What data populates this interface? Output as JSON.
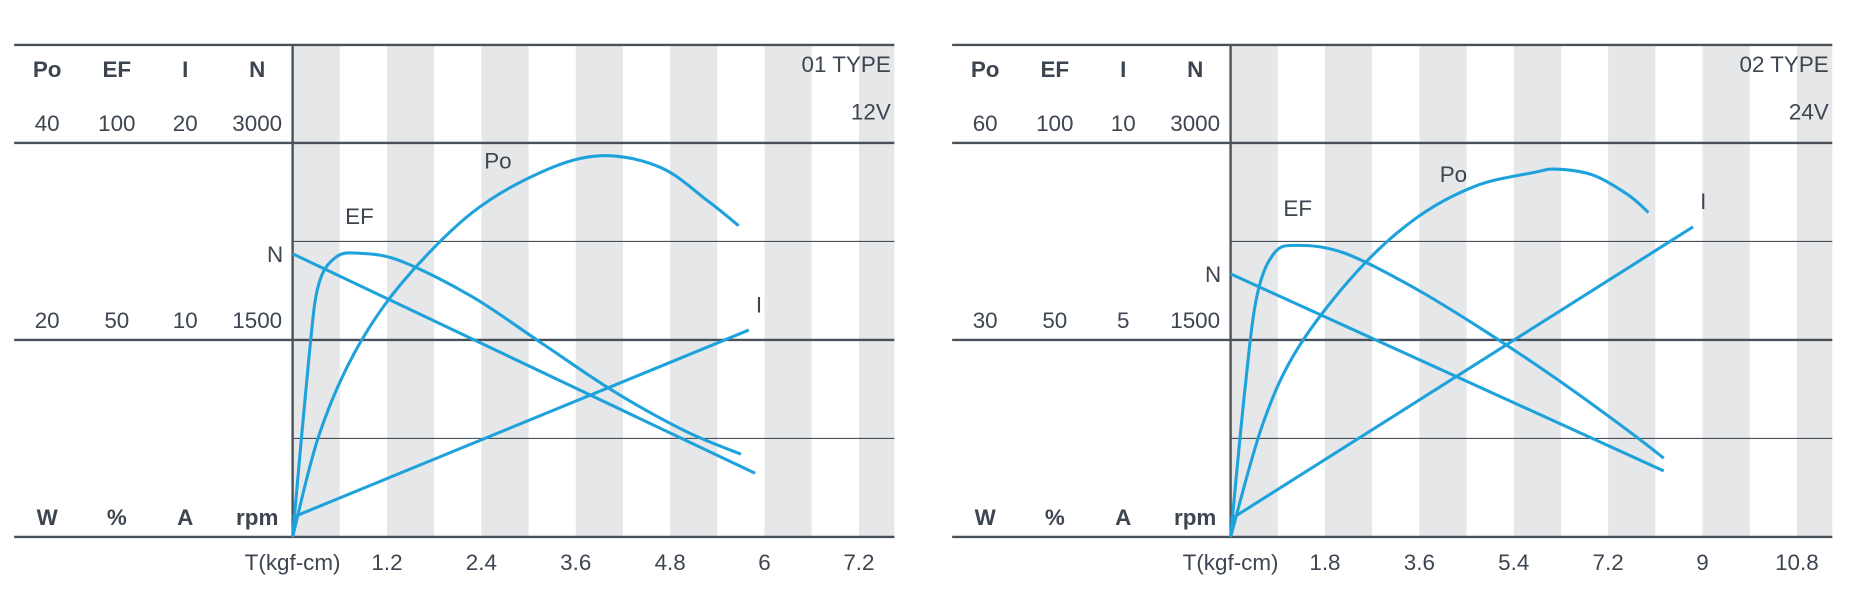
{
  "chart_data": [
    {
      "type": "line",
      "title": "01 TYPE",
      "subtitle": "12V",
      "x_label": "T(kgf-cm)",
      "xlim": [
        0,
        7.65
      ],
      "xticks": [
        1.2,
        2.4,
        3.6,
        4.8,
        6,
        7.2
      ],
      "grid": true,
      "axes": [
        {
          "label": "Po",
          "unit": "W",
          "ylim": [
            0,
            40
          ],
          "yticks": [
            20,
            40
          ]
        },
        {
          "label": "EF",
          "unit": "%",
          "ylim": [
            0,
            100
          ],
          "yticks": [
            50,
            100
          ]
        },
        {
          "label": "I",
          "unit": "A",
          "ylim": [
            0,
            20
          ],
          "yticks": [
            10,
            20
          ]
        },
        {
          "label": "N",
          "unit": "rpm",
          "ylim": [
            0,
            3000
          ],
          "yticks": [
            1500,
            3000
          ]
        }
      ],
      "series": [
        {
          "name": "N",
          "color": "#1ea2dc",
          "axis": "N",
          "x": [
            0,
            5.88
          ],
          "values": [
            2156,
            485
          ]
        },
        {
          "name": "EF",
          "color": "#1ea2dc",
          "axis": "EF",
          "x": [
            0,
            0.21,
            0.33,
            0.55,
            0.85,
            1.38,
            2.28,
            3.18,
            4.08,
            4.98,
            5.7
          ],
          "values": [
            0,
            46,
            64,
            71,
            72,
            70,
            61,
            49,
            37,
            27,
            21
          ]
        },
        {
          "name": "Po",
          "color": "#1ea2dc",
          "axis": "Po",
          "x": [
            0,
            0.33,
            0.78,
            1.38,
            2.28,
            3.18,
            3.93,
            4.68,
            5.28,
            5.67
          ],
          "values": [
            0,
            10.2,
            18.6,
            25.7,
            32.9,
            37.1,
            38.7,
            37.5,
            34.1,
            31.6
          ]
        },
        {
          "name": "I",
          "color": "#1ea2dc",
          "axis": "I",
          "x": [
            0,
            5.8
          ],
          "values": [
            1.0,
            10.5
          ]
        }
      ]
    },
    {
      "type": "line",
      "title": "02 TYPE",
      "subtitle": "24V",
      "x_label": "T(kgf-cm)",
      "xlim": [
        0,
        11.475
      ],
      "xticks": [
        1.8,
        3.6,
        5.4,
        7.2,
        9,
        10.8
      ],
      "grid": true,
      "axes": [
        {
          "label": "Po",
          "unit": "W",
          "ylim": [
            0,
            60
          ],
          "yticks": [
            30,
            60
          ]
        },
        {
          "label": "EF",
          "unit": "%",
          "ylim": [
            0,
            100
          ],
          "yticks": [
            50,
            100
          ]
        },
        {
          "label": "I",
          "unit": "A",
          "ylim": [
            0,
            10
          ],
          "yticks": [
            5,
            10
          ]
        },
        {
          "label": "N",
          "unit": "rpm",
          "ylim": [
            0,
            3000
          ],
          "yticks": [
            1500,
            3000
          ]
        }
      ],
      "series": [
        {
          "name": "N",
          "color": "#1ea2dc",
          "axis": "N",
          "x": [
            0,
            8.26
          ],
          "values": [
            2003,
            503
          ]
        },
        {
          "name": "EF",
          "color": "#1ea2dc",
          "axis": "EF",
          "x": [
            0,
            0.27,
            0.5,
            0.83,
            1.28,
            2.18,
            3.53,
            4.88,
            6.23,
            7.58,
            8.26
          ],
          "values": [
            0,
            37,
            61,
            72,
            74,
            72,
            63,
            52,
            40,
            27,
            20
          ]
        },
        {
          "name": "Po",
          "color": "#1ea2dc",
          "axis": "Po",
          "x": [
            0,
            0.61,
            1.28,
            2.41,
            3.53,
            4.66,
            5.78,
            6.23,
            6.91,
            7.58,
            7.97
          ],
          "values": [
            0,
            17.1,
            28.7,
            40.4,
            48.5,
            53.4,
            55.5,
            56.0,
            55.1,
            52.1,
            49.4
          ]
        },
        {
          "name": "I",
          "color": "#1ea2dc",
          "axis": "I",
          "x": [
            0,
            8.82
          ],
          "values": [
            0.45,
            7.87
          ]
        }
      ]
    }
  ]
}
